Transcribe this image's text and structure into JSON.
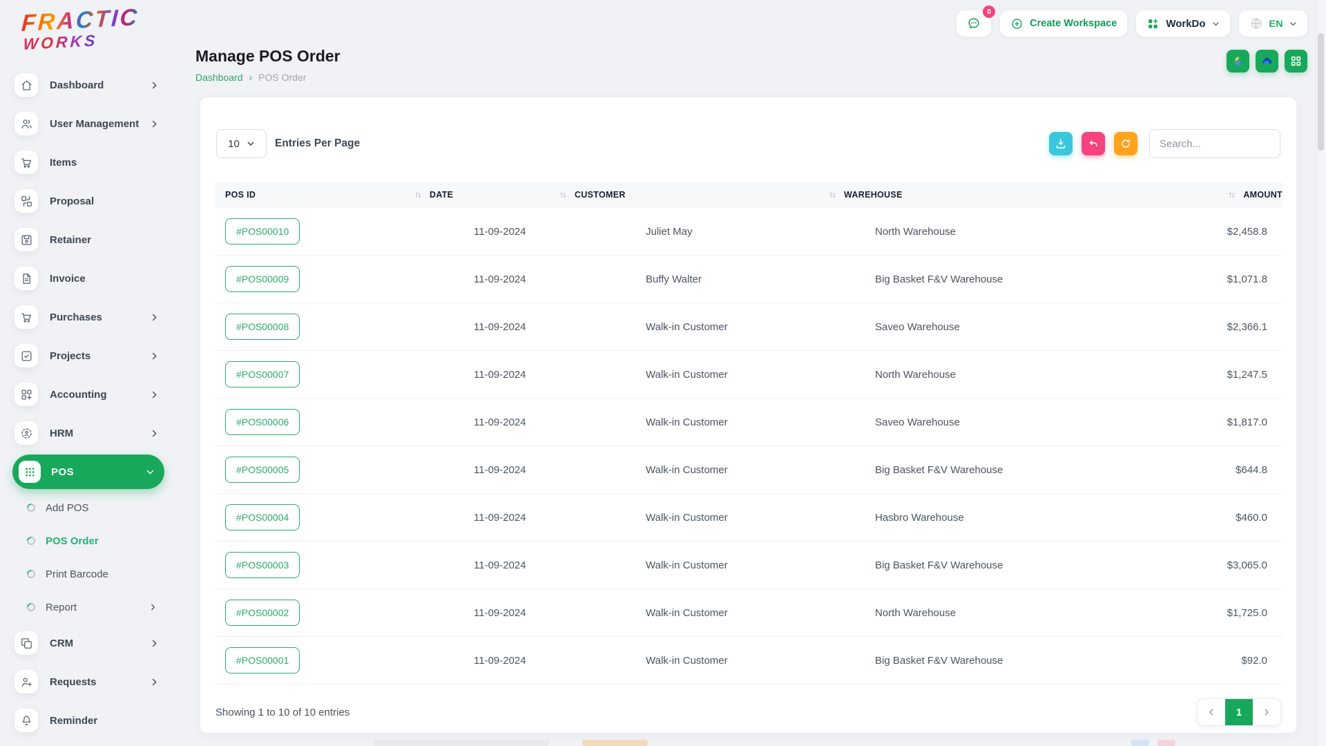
{
  "brand": {
    "line1": "FRACTIC",
    "line2": "WORKS"
  },
  "header": {
    "chat_badge": "0",
    "create_workspace_label": "Create Workspace",
    "workspace_label": "WorkDo",
    "language_label": "EN"
  },
  "sidebar": {
    "menu": [
      {
        "kind": "item",
        "icon": "home",
        "label": "Dashboard",
        "chevron": "right"
      },
      {
        "kind": "item",
        "icon": "users",
        "label": "User Management",
        "chevron": "right"
      },
      {
        "kind": "item",
        "icon": "cart",
        "label": "Items"
      },
      {
        "kind": "item",
        "icon": "proposal",
        "label": "Proposal"
      },
      {
        "kind": "item",
        "icon": "retainer",
        "label": "Retainer"
      },
      {
        "kind": "item",
        "icon": "invoice",
        "label": "Invoice"
      },
      {
        "kind": "item",
        "icon": "cart",
        "label": "Purchases",
        "chevron": "right"
      },
      {
        "kind": "item",
        "icon": "projects",
        "label": "Projects",
        "chevron": "right"
      },
      {
        "kind": "item",
        "icon": "accounting",
        "label": "Accounting",
        "chevron": "right"
      },
      {
        "kind": "item",
        "icon": "hrm",
        "label": "HRM",
        "chevron": "right"
      },
      {
        "kind": "item",
        "icon": "pos",
        "label": "POS",
        "chevron": "down",
        "active": true
      },
      {
        "kind": "sub",
        "label": "Add POS"
      },
      {
        "kind": "sub",
        "label": "POS Order",
        "active": true
      },
      {
        "kind": "sub",
        "label": "Print Barcode"
      },
      {
        "kind": "sub",
        "label": "Report",
        "chevron": "right"
      },
      {
        "kind": "item",
        "icon": "crm",
        "label": "CRM",
        "chevron": "right"
      },
      {
        "kind": "item",
        "icon": "user-plus",
        "label": "Requests",
        "chevron": "right"
      },
      {
        "kind": "item",
        "icon": "bell",
        "label": "Reminder"
      }
    ]
  },
  "page": {
    "title": "Manage POS Order",
    "breadcrumb_home": "Dashboard",
    "breadcrumb_current": "POS Order"
  },
  "toolbar": {
    "entries_value": "10",
    "entries_label": "Entries Per Page",
    "search_placeholder": "Search..."
  },
  "table": {
    "columns": [
      {
        "label": "POS ID",
        "sort": false
      },
      {
        "label": "DATE",
        "sort": true
      },
      {
        "label": "CUSTOMER",
        "sort": true
      },
      {
        "label": "WAREHOUSE",
        "sort": true
      },
      {
        "label": "AMOUNT",
        "sort": true
      }
    ],
    "rows": [
      {
        "pos_id": "#POS00010",
        "date": "11-09-2024",
        "customer": "Juliet May",
        "warehouse": "North Warehouse",
        "amount": "$2,458.8"
      },
      {
        "pos_id": "#POS00009",
        "date": "11-09-2024",
        "customer": "Buffy Walter",
        "warehouse": "Big Basket F&V Warehouse",
        "amount": "$1,071.8"
      },
      {
        "pos_id": "#POS00008",
        "date": "11-09-2024",
        "customer": "Walk-in Customer",
        "warehouse": "Saveo Warehouse",
        "amount": "$2,366.1"
      },
      {
        "pos_id": "#POS00007",
        "date": "11-09-2024",
        "customer": "Walk-in Customer",
        "warehouse": "North Warehouse",
        "amount": "$1,247.5"
      },
      {
        "pos_id": "#POS00006",
        "date": "11-09-2024",
        "customer": "Walk-in Customer",
        "warehouse": "Saveo Warehouse",
        "amount": "$1,817.0"
      },
      {
        "pos_id": "#POS00005",
        "date": "11-09-2024",
        "customer": "Walk-in Customer",
        "warehouse": "Big Basket F&V Warehouse",
        "amount": "$644.8"
      },
      {
        "pos_id": "#POS00004",
        "date": "11-09-2024",
        "customer": "Walk-in Customer",
        "warehouse": "Hasbro Warehouse",
        "amount": "$460.0"
      },
      {
        "pos_id": "#POS00003",
        "date": "11-09-2024",
        "customer": "Walk-in Customer",
        "warehouse": "Big Basket F&V Warehouse",
        "amount": "$3,065.0"
      },
      {
        "pos_id": "#POS00002",
        "date": "11-09-2024",
        "customer": "Walk-in Customer",
        "warehouse": "North Warehouse",
        "amount": "$1,725.0"
      },
      {
        "pos_id": "#POS00001",
        "date": "11-09-2024",
        "customer": "Walk-in Customer",
        "warehouse": "Big Basket F&V Warehouse",
        "amount": "$92.0"
      }
    ]
  },
  "footer": {
    "showing_text": "Showing 1 to 10 of 10 entries",
    "current_page": "1"
  },
  "colors": {
    "primary": "#18a85b",
    "export_button": "#3ac7dd",
    "undo_button": "#f4437e",
    "refresh_button": "#ffa21d",
    "badge": "#f5437b"
  }
}
